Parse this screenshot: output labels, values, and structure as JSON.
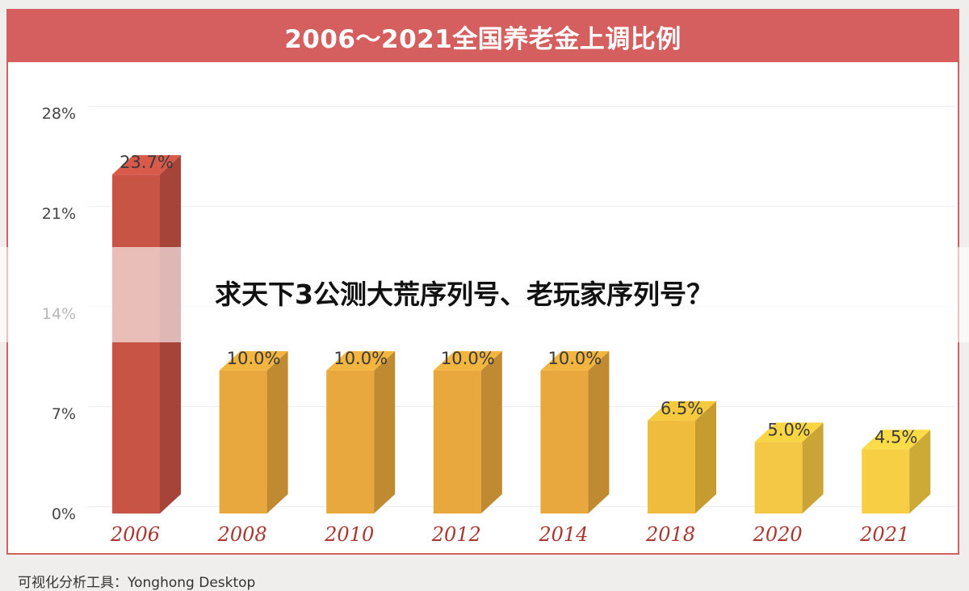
{
  "chart_data": {
    "type": "bar",
    "title": "2006～2021全国养老金上调比例",
    "categories": [
      "2006",
      "2008",
      "2010",
      "2012",
      "2014",
      "2018",
      "2020",
      "2021"
    ],
    "values": [
      23.7,
      10.0,
      10.0,
      10.0,
      10.0,
      6.5,
      5.0,
      4.5
    ],
    "data_labels": [
      "23.7%",
      "10.0%",
      "10.0%",
      "10.0%",
      "10.0%",
      "6.5%",
      "5.0%",
      "4.5%"
    ],
    "yticks": [
      "0%",
      "7%",
      "14%",
      "21%",
      "28%"
    ],
    "ytick_values": [
      0,
      7,
      14,
      21,
      28
    ],
    "ylim": [
      0,
      28
    ],
    "xlabel": "",
    "ylabel": "",
    "grid": true,
    "colors": {
      "bars_front": [
        "#c85445",
        "#e8a83d",
        "#e8a83d",
        "#e8a83d",
        "#e8a83d",
        "#f0bc3e",
        "#f4c845",
        "#f6cf44"
      ],
      "bars_side": [
        "#a6443a",
        "#c08a32",
        "#c08a32",
        "#c08a32",
        "#c08a32",
        "#c69b30",
        "#caa436",
        "#cda936"
      ],
      "bars_top": [
        "#d9594a",
        "#f2b53f",
        "#f2b53f",
        "#f2b53f",
        "#f2b53f",
        "#f7c93f",
        "#f9d544",
        "#fbdb47"
      ],
      "category_label": "#a9362f",
      "title_bar": "#d45f5e"
    }
  },
  "overlay": {
    "text": "求天下3公测大荒序列号、老玩家序列号？"
  },
  "footer": {
    "source": "可视化分析工具：Yonghong Desktop"
  }
}
